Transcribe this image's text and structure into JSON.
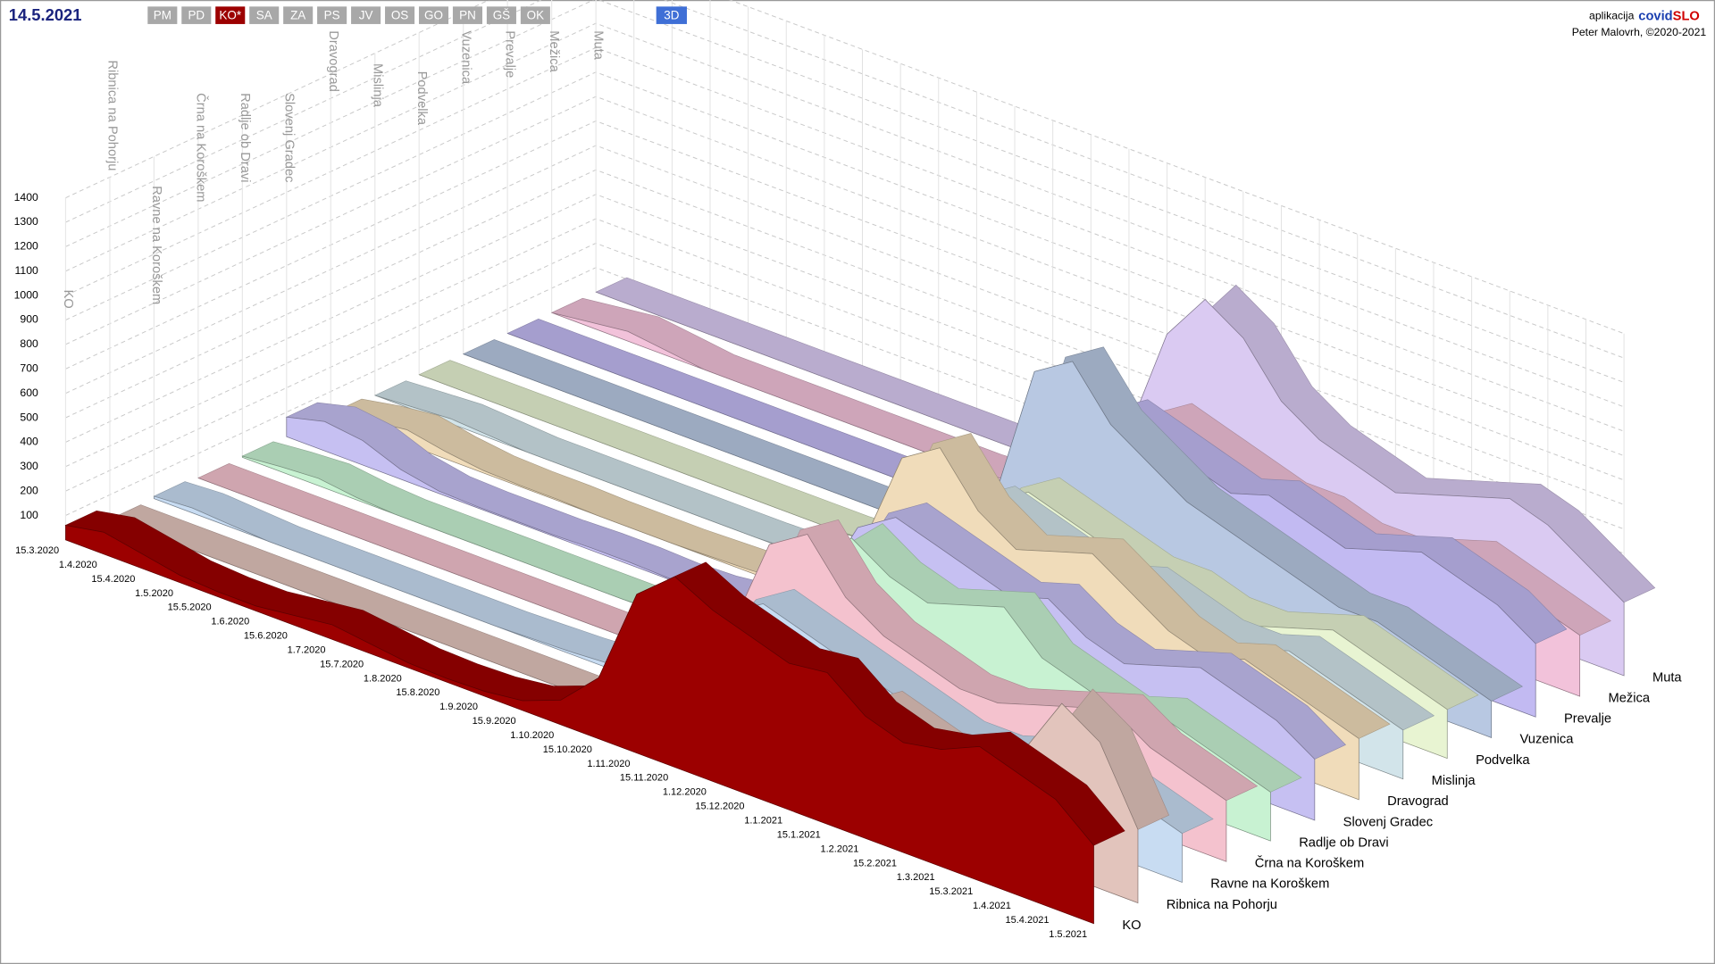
{
  "header": {
    "date": "14.5.2021",
    "buttons": [
      "PM",
      "PD",
      "KO*",
      "SA",
      "ZA",
      "PS",
      "JV",
      "OS",
      "GO",
      "PN",
      "GŠ",
      "OK"
    ],
    "active_button": 2,
    "mode_button": "3D",
    "app_label": "aplikacija",
    "app_name_a": "covid",
    "app_name_b": "SLO",
    "credit": "Peter Malovrh, ©2020-2021"
  },
  "chart_data": {
    "type": "area3d",
    "categories": [
      "15.3.2020",
      "1.4.2020",
      "15.4.2020",
      "1.5.2020",
      "15.5.2020",
      "1.6.2020",
      "15.6.2020",
      "1.7.2020",
      "15.7.2020",
      "1.8.2020",
      "15.8.2020",
      "1.9.2020",
      "15.9.2020",
      "1.10.2020",
      "15.10.2020",
      "1.11.2020",
      "15.11.2020",
      "1.12.2020",
      "15.12.2020",
      "1.1.2021",
      "15.1.2021",
      "1.2.2021",
      "15.2.2021",
      "1.3.2021",
      "15.3.2021",
      "1.4.2021",
      "15.4.2021",
      "1.5.2021"
    ],
    "ylim": [
      0,
      1400
    ],
    "yticks": [
      100,
      200,
      300,
      400,
      500,
      600,
      700,
      800,
      900,
      1000,
      1100,
      1200,
      1300,
      1400
    ],
    "grid": true,
    "series": [
      {
        "name": "KO",
        "color": "#9c0000",
        "values": [
          60,
          90,
          60,
          30,
          20,
          20,
          40,
          60,
          40,
          20,
          15,
          20,
          40,
          100,
          250,
          650,
          780,
          700,
          650,
          600,
          620,
          500,
          450,
          480,
          550,
          500,
          450,
          320
        ]
      },
      {
        "name": "Ribnica na Pohorju",
        "color": "#e2c4bc",
        "values": [
          0,
          0,
          0,
          0,
          0,
          0,
          0,
          0,
          0,
          0,
          0,
          0,
          0,
          0,
          0,
          100,
          300,
          200,
          250,
          300,
          400,
          350,
          300,
          250,
          450,
          700,
          600,
          300
        ]
      },
      {
        "name": "Ravne na Koroškem",
        "color": "#c8dcf2",
        "values": [
          10,
          20,
          10,
          0,
          0,
          0,
          0,
          0,
          0,
          0,
          5,
          10,
          20,
          60,
          150,
          400,
          500,
          450,
          400,
          350,
          300,
          250,
          250,
          300,
          350,
          300,
          250,
          200
        ]
      },
      {
        "name": "Črna na Koroškem",
        "color": "#f4c2ce",
        "values": [
          0,
          0,
          0,
          0,
          0,
          0,
          0,
          0,
          0,
          0,
          0,
          0,
          0,
          50,
          200,
          600,
          700,
          500,
          400,
          350,
          300,
          300,
          350,
          400,
          450,
          350,
          300,
          250
        ]
      },
      {
        "name": "Radlje ob Dravi",
        "color": "#c8f2d2",
        "values": [
          5,
          20,
          30,
          10,
          0,
          0,
          0,
          0,
          0,
          0,
          0,
          5,
          10,
          30,
          150,
          450,
          600,
          500,
          450,
          500,
          550,
          400,
          350,
          300,
          350,
          300,
          250,
          200
        ]
      },
      {
        "name": "Slovenj Gradec",
        "color": "#c6c0f2",
        "values": [
          80,
          120,
          100,
          40,
          10,
          5,
          5,
          5,
          10,
          10,
          5,
          10,
          30,
          80,
          200,
          500,
          600,
          550,
          500,
          450,
          500,
          400,
          350,
          400,
          450,
          400,
          350,
          250
        ]
      },
      {
        "name": "Dravograd",
        "color": "#f0dcba",
        "values": [
          10,
          40,
          60,
          30,
          10,
          5,
          5,
          0,
          0,
          0,
          5,
          10,
          20,
          80,
          300,
          700,
          800,
          600,
          500,
          550,
          600,
          500,
          400,
          350,
          400,
          350,
          300,
          250
        ]
      },
      {
        "name": "Mislinja",
        "color": "#d2e4ea",
        "values": [
          0,
          10,
          20,
          10,
          0,
          0,
          0,
          0,
          0,
          0,
          0,
          5,
          10,
          40,
          200,
          400,
          500,
          450,
          400,
          350,
          400,
          350,
          300,
          300,
          350,
          300,
          250,
          200
        ]
      },
      {
        "name": "Podvelka",
        "color": "#e8f4d2",
        "values": [
          0,
          0,
          0,
          0,
          0,
          0,
          0,
          0,
          0,
          0,
          0,
          0,
          10,
          40,
          150,
          350,
          450,
          400,
          350,
          300,
          300,
          250,
          250,
          300,
          350,
          300,
          250,
          200
        ]
      },
      {
        "name": "Vuzenica",
        "color": "#b8c8e2",
        "values": [
          0,
          0,
          0,
          0,
          0,
          0,
          0,
          0,
          0,
          0,
          0,
          0,
          20,
          60,
          250,
          800,
          900,
          700,
          600,
          500,
          450,
          400,
          350,
          300,
          300,
          250,
          200,
          150
        ]
      },
      {
        "name": "Prevalje",
        "color": "#c2baf2",
        "values": [
          0,
          0,
          0,
          0,
          0,
          0,
          0,
          0,
          0,
          0,
          0,
          0,
          10,
          50,
          200,
          500,
          600,
          550,
          500,
          450,
          500,
          450,
          400,
          450,
          500,
          450,
          400,
          300
        ]
      },
      {
        "name": "Mežica",
        "color": "#f2c2da",
        "values": [
          0,
          20,
          40,
          20,
          0,
          0,
          0,
          0,
          0,
          0,
          0,
          0,
          10,
          40,
          150,
          400,
          500,
          450,
          400,
          350,
          350,
          300,
          300,
          350,
          400,
          350,
          300,
          250
        ]
      },
      {
        "name": "Muta",
        "color": "#dacaf2",
        "values": [
          0,
          0,
          0,
          0,
          0,
          0,
          0,
          0,
          0,
          0,
          0,
          0,
          10,
          60,
          250,
          700,
          900,
          800,
          600,
          500,
          450,
          400,
          450,
          500,
          550,
          500,
          400,
          300
        ]
      }
    ]
  }
}
